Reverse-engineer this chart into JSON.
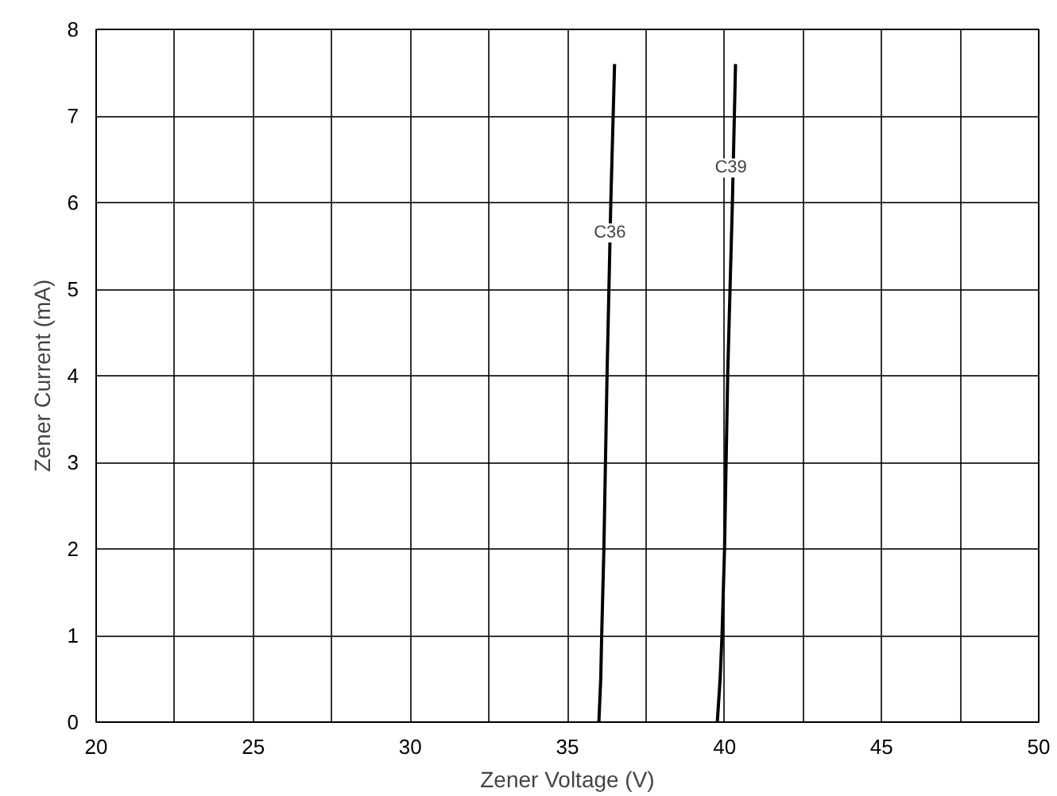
{
  "chart_data": {
    "type": "line",
    "xlabel": "Zener Voltage (V)",
    "ylabel": "Zener Current (mA)",
    "xlim": [
      20,
      50
    ],
    "ylim": [
      0,
      8
    ],
    "xticks": [
      20,
      {
        "value": 22.5,
        "label": null
      },
      25,
      {
        "value": 27.5,
        "label": null
      },
      30,
      {
        "value": 32.5,
        "label": null
      },
      35,
      {
        "value": 37.5,
        "label": null
      },
      40,
      {
        "value": 42.5,
        "label": null
      },
      45,
      {
        "value": 47.5,
        "label": null
      },
      50
    ],
    "yticks": [
      0,
      1,
      2,
      3,
      4,
      5,
      6,
      7,
      8
    ],
    "grid": true,
    "line_style": "solid",
    "series": [
      {
        "color": "#000000",
        "x": [
          36.0,
          36.06,
          36.09,
          36.16,
          36.26,
          36.38,
          36.5
        ],
        "values": [
          0,
          0.5,
          1,
          2,
          4,
          6,
          7.6
        ]
      },
      {
        "color": "#000000",
        "x": [
          39.77,
          39.86,
          39.92,
          40.0,
          40.1,
          40.25,
          40.35
        ],
        "values": [
          0,
          0.5,
          1,
          2,
          4,
          6,
          7.6
        ]
      }
    ],
    "annotations": [
      {
        "text": "C36",
        "x": 36.35,
        "y": 5.65
      },
      {
        "text": "C39",
        "x": 40.2,
        "y": 6.4
      }
    ]
  }
}
